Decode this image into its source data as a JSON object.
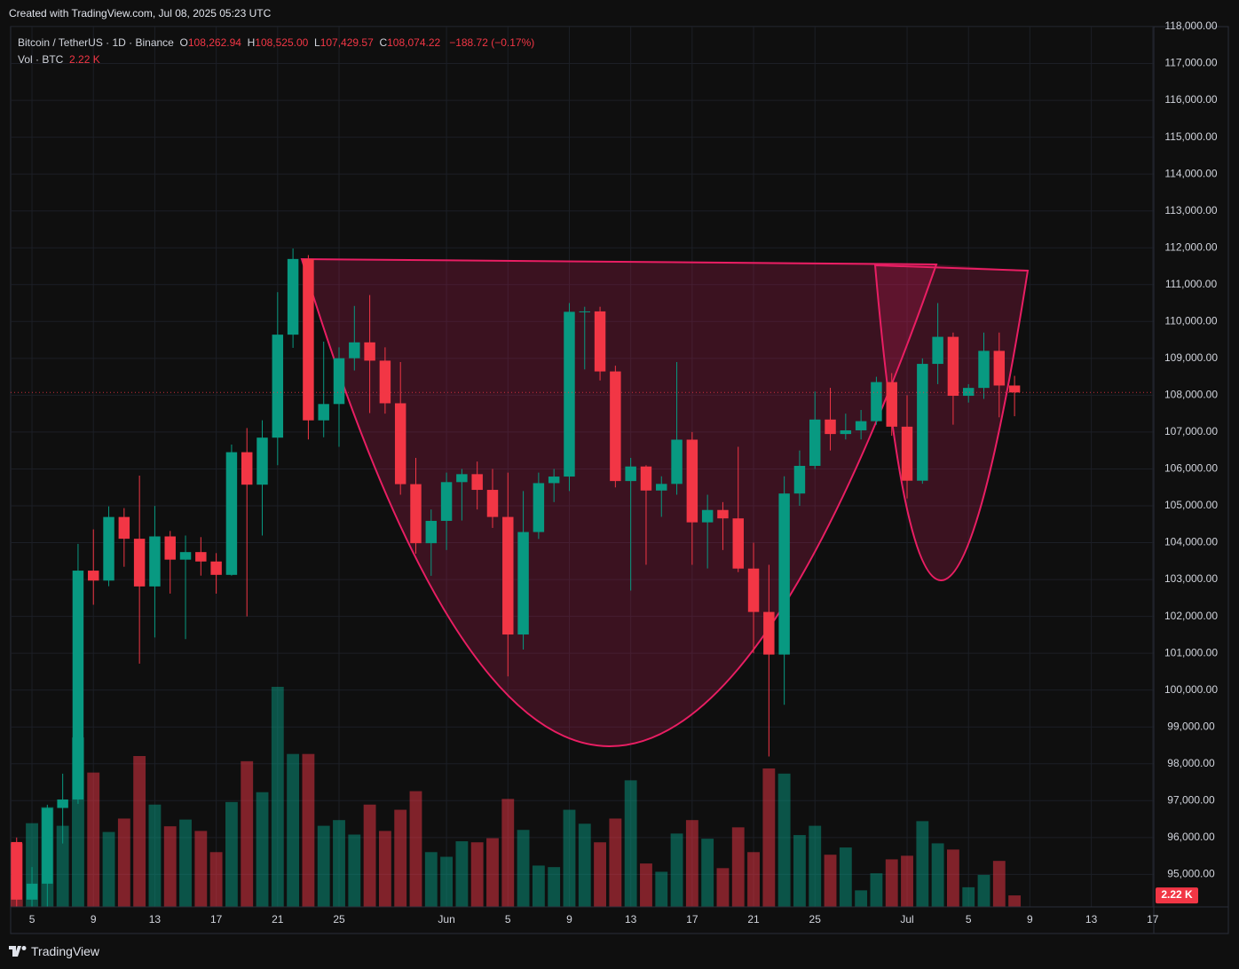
{
  "header": {
    "text": "Created with TradingView.com, Jul 08, 2025 05:23 UTC"
  },
  "legend": {
    "symbol": "Bitcoin / TetherUS · 1D · Binance",
    "o_label": "O",
    "o": "108,262.94",
    "h_label": "H",
    "h": "108,525.00",
    "l_label": "L",
    "l": "107,429.57",
    "c_label": "C",
    "c": "108,074.22",
    "change": "−188.72 (−0.17%)",
    "vol": "Vol · BTC",
    "vol_value": "2.22 K"
  },
  "footer": {
    "brand": "TradingView"
  },
  "chart_data": {
    "type": "candlestick",
    "up_color": "#089981",
    "down_color": "#f23645",
    "volume_up_color": "rgba(8,153,129,0.5)",
    "volume_down_color": "rgba(242,54,69,0.5)",
    "grid": true,
    "xlim": [
      -0.39,
      74.07
    ],
    "xticks": [
      {
        "value": 1,
        "label": "5"
      },
      {
        "value": 5,
        "label": "9"
      },
      {
        "value": 9,
        "label": "13"
      },
      {
        "value": 13,
        "label": "17"
      },
      {
        "value": 17,
        "label": "21"
      },
      {
        "value": 21,
        "label": "25"
      },
      {
        "value": 28,
        "label": "Jun"
      },
      {
        "value": 32,
        "label": "5"
      },
      {
        "value": 36,
        "label": "9"
      },
      {
        "value": 40,
        "label": "13"
      },
      {
        "value": 44,
        "label": "17"
      },
      {
        "value": 48,
        "label": "21"
      },
      {
        "value": 52,
        "label": "25"
      },
      {
        "value": 58,
        "label": "Jul"
      },
      {
        "value": 62,
        "label": "5"
      },
      {
        "value": 66,
        "label": "9"
      },
      {
        "value": 70,
        "label": "13"
      },
      {
        "value": 74,
        "label": "17"
      }
    ],
    "ylim": [
      94118,
      118000
    ],
    "yticks": [
      {
        "value": 95000,
        "label": "95,000.00"
      },
      {
        "value": 96000,
        "label": "96,000.00"
      },
      {
        "value": 97000,
        "label": "97,000.00"
      },
      {
        "value": 98000,
        "label": "98,000.00"
      },
      {
        "value": 99000,
        "label": "99,000.00"
      },
      {
        "value": 100000,
        "label": "100,000.00"
      },
      {
        "value": 101000,
        "label": "101,000.00"
      },
      {
        "value": 102000,
        "label": "102,000.00"
      },
      {
        "value": 103000,
        "label": "103,000.00"
      },
      {
        "value": 104000,
        "label": "104,000.00"
      },
      {
        "value": 105000,
        "label": "105,000.00"
      },
      {
        "value": 106000,
        "label": "106,000.00"
      },
      {
        "value": 107000,
        "label": "107,000.00"
      },
      {
        "value": 108000,
        "label": "108,000.00"
      },
      {
        "value": 109000,
        "label": "109,000.00"
      },
      {
        "value": 110000,
        "label": "110,000.00"
      },
      {
        "value": 111000,
        "label": "111,000.00"
      },
      {
        "value": 112000,
        "label": "112,000.00"
      },
      {
        "value": 113000,
        "label": "113,000.00"
      },
      {
        "value": 114000,
        "label": "114,000.00"
      },
      {
        "value": 115000,
        "label": "115,000.00"
      },
      {
        "value": 116000,
        "label": "116,000.00"
      },
      {
        "value": 117000,
        "label": "117,000.00"
      },
      {
        "value": 118000,
        "label": "118,000.00"
      }
    ],
    "open": [
      95877,
      94315,
      94748,
      96802,
      97032,
      103241,
      102971,
      104696,
      104106,
      102812,
      104169,
      103539,
      103744,
      103489,
      103126,
      106454,
      105573,
      106849,
      109643,
      111696,
      107318,
      107761,
      109004,
      109434,
      108938,
      107781,
      105587,
      103985,
      104591,
      105642,
      105858,
      105432,
      104697,
      101508,
      104288,
      105615,
      105793,
      110263,
      110274,
      108645,
      105671,
      106066,
      105414,
      105594,
      106794,
      104551,
      104886,
      104658,
      103297,
      102120,
      100964,
      105333,
      106083,
      107340,
      106947,
      107047,
      107296,
      108356,
      107146,
      105681,
      108850,
      109584,
      107984,
      108198,
      109203,
      108262.94
    ],
    "high": [
      96000,
      95199,
      96889,
      97732,
      103969,
      104361,
      104984,
      104937,
      105819,
      104997,
      104317,
      104193,
      104150,
      103716,
      106660,
      107108,
      107320,
      110797,
      111980,
      111800,
      109454,
      109300,
      110422,
      110718,
      109300,
      108900,
      106300,
      104900,
      105900,
      106000,
      106200,
      106000,
      105900,
      105400,
      105900,
      106000,
      110500,
      110400,
      110400,
      108800,
      106300,
      106100,
      105800,
      108900,
      107000,
      105300,
      105100,
      106600,
      104000,
      103400,
      105800,
      106500,
      108100,
      108200,
      107500,
      107600,
      108500,
      108600,
      108000,
      109000,
      110500,
      109700,
      108300,
      109700,
      109700,
      108525
    ],
    "low": [
      94100,
      93514,
      93377,
      95837,
      96913,
      102315,
      102818,
      103346,
      100718,
      101429,
      102618,
      101383,
      103105,
      102616,
      103105,
      102000,
      104192,
      106100,
      109285,
      106800,
      106859,
      106600,
      108670,
      107516,
      107500,
      105300,
      103700,
      103100,
      103800,
      104600,
      104900,
      104400,
      100372,
      101100,
      104100,
      105100,
      105400,
      108700,
      108400,
      105500,
      102700,
      103400,
      104700,
      105300,
      103400,
      103300,
      103800,
      103200,
      101000,
      98200,
      99600,
      105000,
      106000,
      106500,
      106800,
      106800,
      107200,
      106900,
      105200,
      105600,
      108300,
      107200,
      107800,
      107900,
      107400,
      107429.57
    ],
    "close": [
      94315,
      94748,
      96802,
      97032,
      103241,
      102971,
      104696,
      104106,
      102812,
      104169,
      103539,
      103744,
      103489,
      103126,
      106454,
      105573,
      106849,
      109643,
      111696,
      107318,
      107761,
      109004,
      109434,
      108938,
      107781,
      105587,
      103985,
      104591,
      105642,
      105858,
      105432,
      104697,
      101508,
      104288,
      105615,
      105793,
      110263,
      110274,
      108645,
      105671,
      106066,
      105414,
      105594,
      106794,
      104551,
      104886,
      104658,
      103297,
      102120,
      100964,
      105333,
      106083,
      107340,
      106947,
      107047,
      107296,
      108356,
      107146,
      105681,
      108850,
      109584,
      107984,
      108198,
      109203,
      108263,
      108074.22
    ],
    "volume": [
      12300,
      16200,
      19300,
      15700,
      32800,
      26000,
      14500,
      17100,
      29200,
      19800,
      15600,
      16900,
      14700,
      10600,
      20300,
      28200,
      22200,
      42600,
      29600,
      29600,
      15700,
      16800,
      14000,
      19800,
      14700,
      18800,
      22400,
      10600,
      9700,
      12700,
      12500,
      13300,
      20900,
      14900,
      8000,
      7700,
      18800,
      16100,
      12500,
      17100,
      24500,
      8400,
      6800,
      14200,
      16800,
      13200,
      7500,
      15400,
      10600,
      26800,
      25800,
      13900,
      15700,
      10100,
      11500,
      3200,
      6500,
      9200,
      9900,
      16600,
      12300,
      11100,
      3800,
      6200,
      8900,
      2220
    ]
  }
}
